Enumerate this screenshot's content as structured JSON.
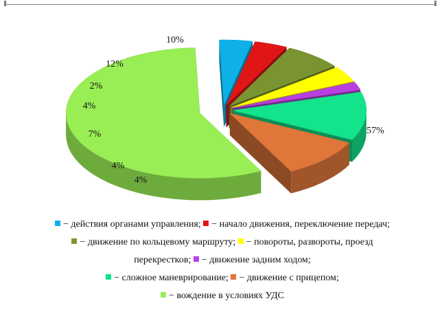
{
  "chart_data": {
    "type": "pie",
    "title": "",
    "slices": [
      {
        "label": "действия органами управления;",
        "value": 4,
        "value_label": "4%",
        "color": "#0eb0e8"
      },
      {
        "label": "начало движения, переключение передач;",
        "value": 4,
        "value_label": "4%",
        "color": "#e01616"
      },
      {
        "label": "движение по кольцевому маршруту;",
        "value": 7,
        "value_label": "7%",
        "color": "#7a9431"
      },
      {
        "label": "повороты, развороты, проезд перекрестков;",
        "value": 4,
        "value_label": "4%",
        "color": "#ffff00"
      },
      {
        "label": "движение задним ходом;",
        "value": 2,
        "value_label": "2%",
        "color": "#b940e0"
      },
      {
        "label": "сложное маневрирование;",
        "value": 12,
        "value_label": "12%",
        "color": "#13e38a"
      },
      {
        "label": "движение с прицепом;",
        "value": 10,
        "value_label": "10%",
        "color": "#e0763a"
      },
      {
        "label": "вождение в условиях УДС",
        "value": 57,
        "value_label": "57%",
        "color": "#99ee55"
      }
    ],
    "legend_placement": "bottom",
    "style": "3d-exploded"
  },
  "legend": {
    "line1": [
      {
        "text": "− действия органами управления;",
        "color": "#0eb0e8"
      },
      {
        "text": "− начало движения, переключение передач;",
        "color": "#e01616"
      }
    ],
    "line2": [
      {
        "text": "− движение по кольцевому маршруту;",
        "color": "#7a9431"
      },
      {
        "text": "− повороты, развороты, проезд",
        "color": "#ffff00"
      }
    ],
    "line3_prefix": "перекрестков;",
    "line3": [
      {
        "text": "− движение задним ходом;",
        "color": "#b940e0"
      }
    ],
    "line4": [
      {
        "text": "− сложное маневрирование;",
        "color": "#13e38a"
      },
      {
        "text": "− движение с прицепом;",
        "color": "#e0763a"
      }
    ],
    "line5": [
      {
        "text": "− вождение в условиях УДС",
        "color": "#99ee55"
      }
    ]
  }
}
